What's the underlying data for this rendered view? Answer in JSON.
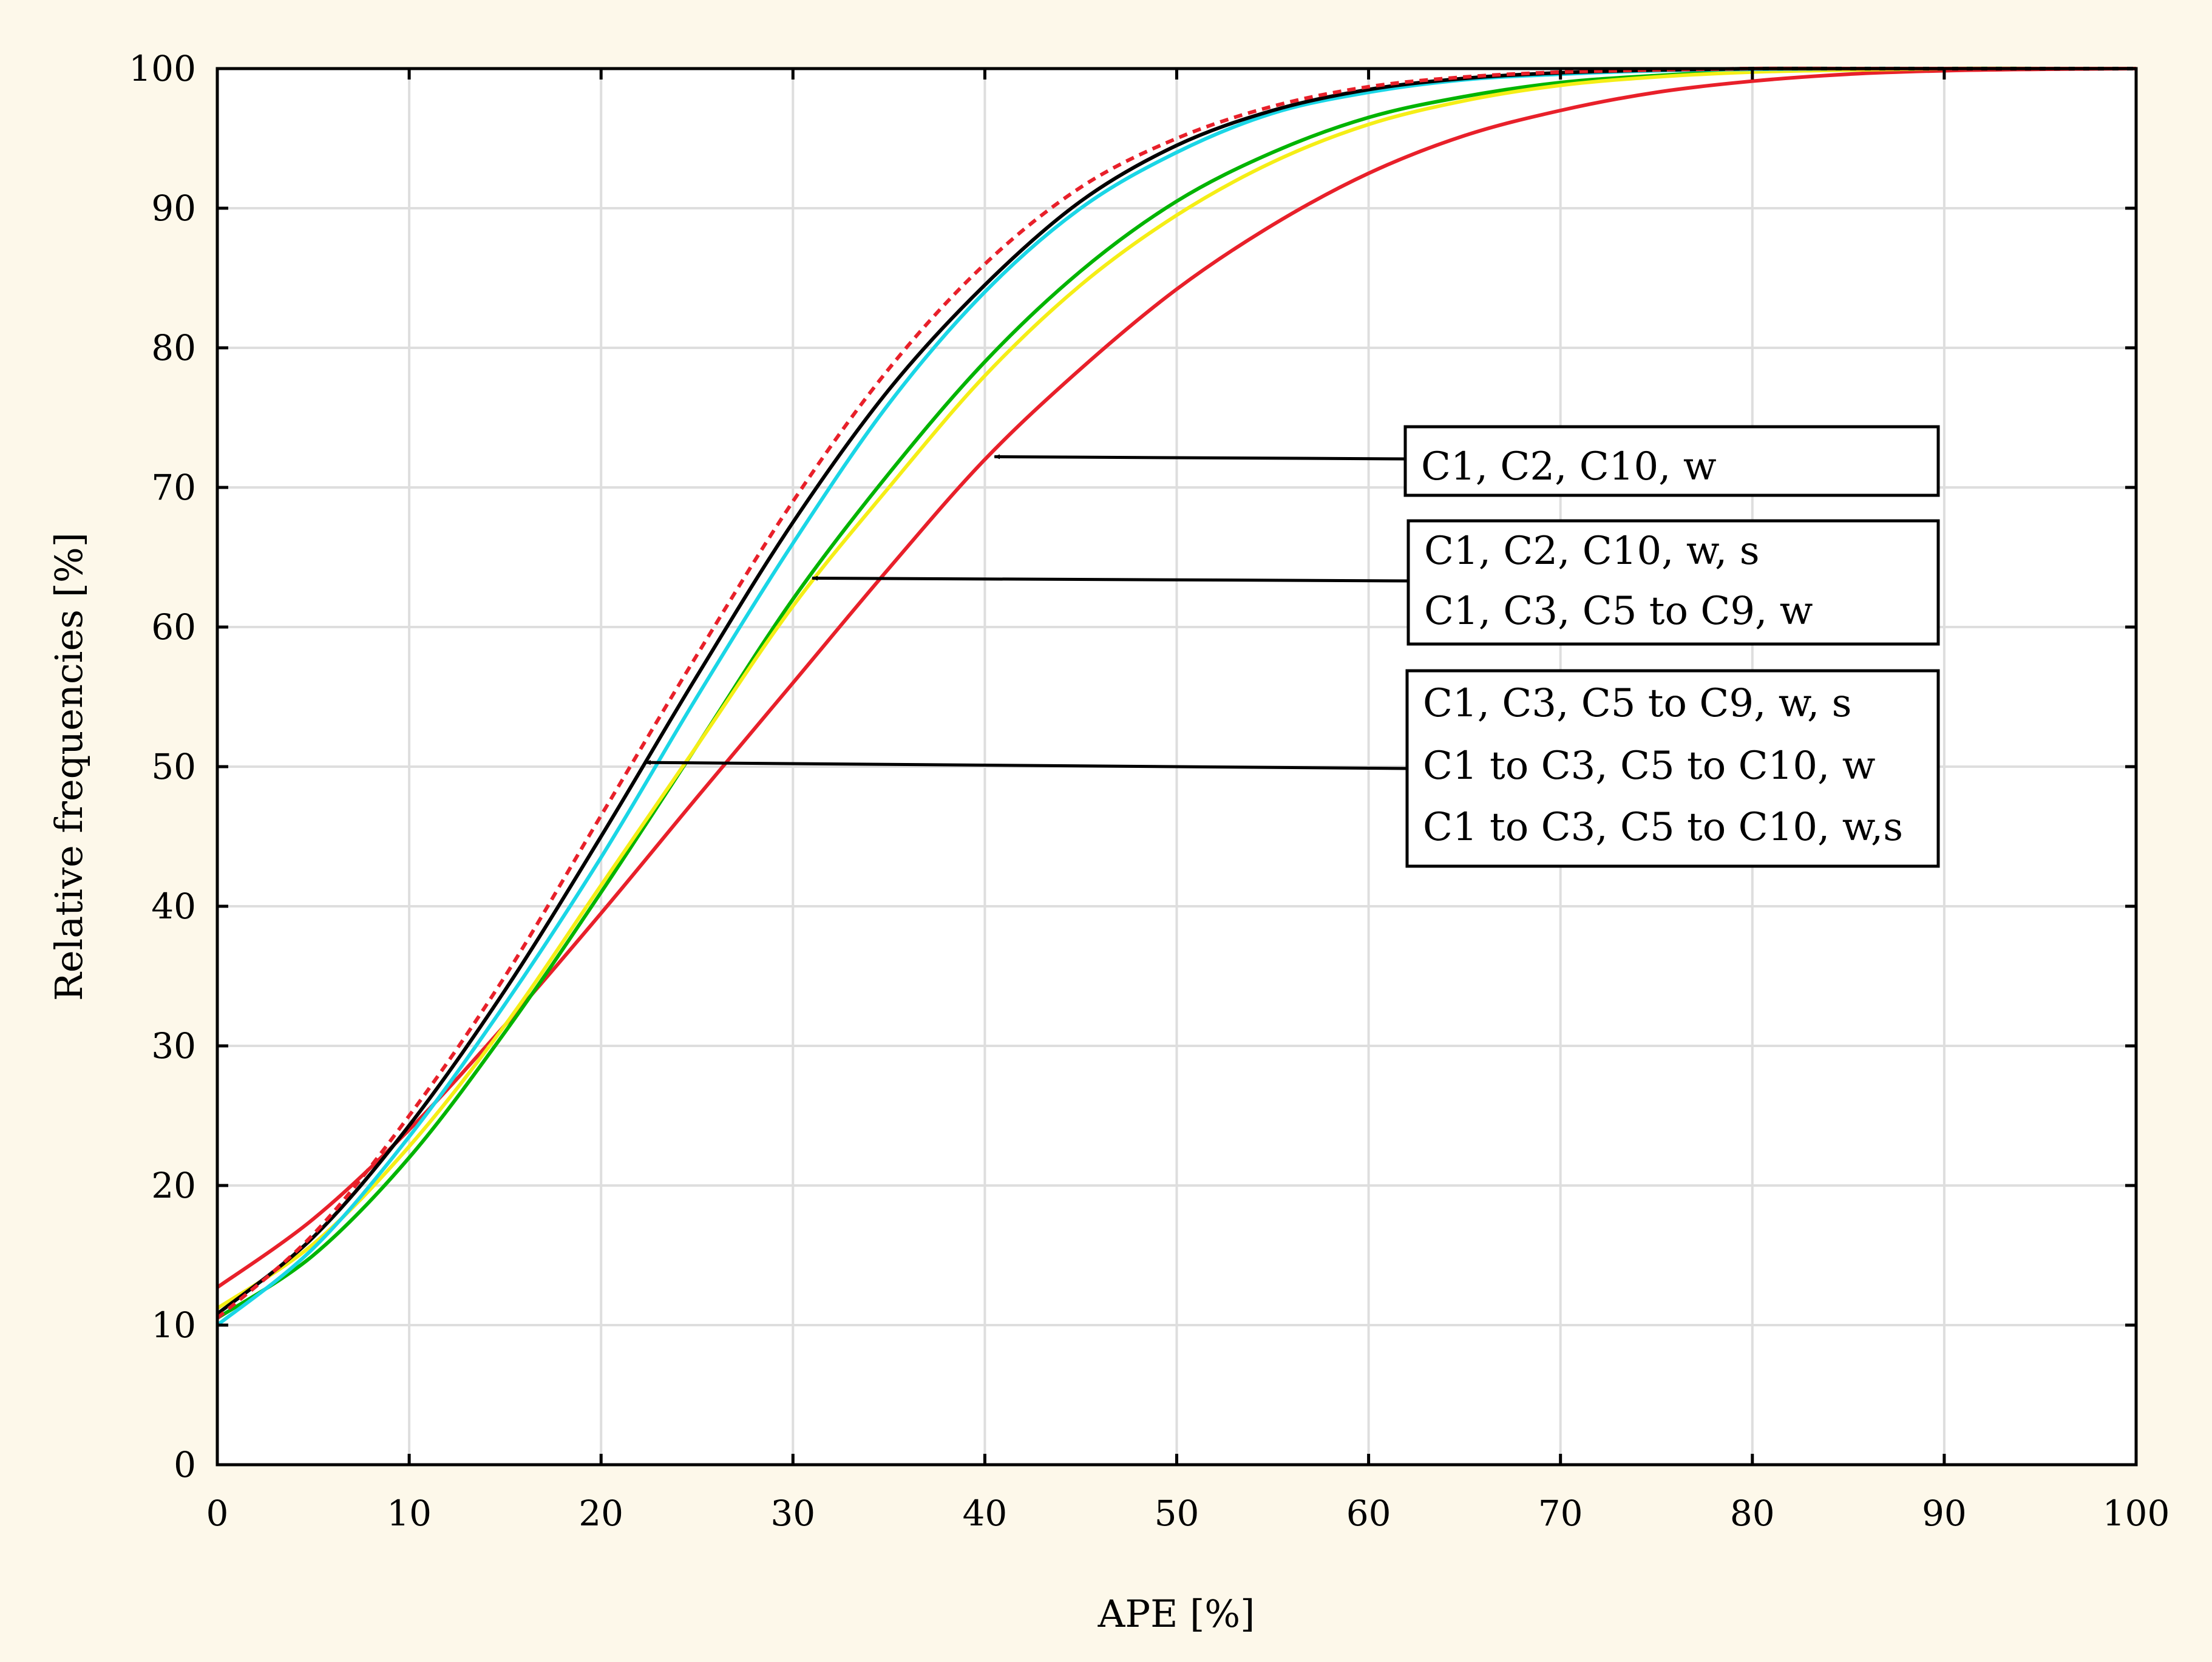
{
  "chart_data": {
    "type": "line",
    "title": "",
    "xlabel": "APE [%]",
    "ylabel": "Relative frequencies [%]",
    "xlim": [
      0,
      100
    ],
    "ylim": [
      0,
      100
    ],
    "xticks": [
      0,
      10,
      20,
      30,
      40,
      50,
      60,
      70,
      80,
      90,
      100
    ],
    "yticks": [
      0,
      10,
      20,
      30,
      40,
      50,
      60,
      70,
      80,
      90,
      100
    ],
    "grid": true,
    "series": [
      {
        "color": "#e8202a",
        "dashed": false,
        "x": [
          0,
          5,
          10,
          15,
          20,
          25,
          30,
          35,
          40,
          45,
          50,
          55,
          60,
          65,
          70,
          75,
          80,
          85,
          90,
          95,
          100
        ],
        "y": [
          12.7,
          17.6,
          24.0,
          31.5,
          39.5,
          47.8,
          56.0,
          64.2,
          72.0,
          78.5,
          84.2,
          88.8,
          92.5,
          95.2,
          97.0,
          98.3,
          99.1,
          99.6,
          99.85,
          99.95,
          100
        ]
      },
      {
        "color": "#00b400",
        "dashed": false,
        "x": [
          0,
          5,
          10,
          15,
          20,
          25,
          30,
          35,
          40,
          45,
          50,
          55,
          60,
          65,
          70,
          75,
          80,
          85,
          90,
          95,
          100
        ],
        "y": [
          10.5,
          15.0,
          22.0,
          31.0,
          41.0,
          51.5,
          62.0,
          71.0,
          79.0,
          85.5,
          90.5,
          94.0,
          96.5,
          98.0,
          99.0,
          99.5,
          99.8,
          99.9,
          100,
          100,
          100
        ]
      },
      {
        "color": "#f5ee16",
        "dashed": false,
        "x": [
          0,
          5,
          10,
          15,
          20,
          25,
          30,
          35,
          40,
          45,
          50,
          55,
          60,
          65,
          70,
          75,
          80,
          85,
          90,
          95,
          100
        ],
        "y": [
          11.2,
          15.8,
          22.8,
          31.5,
          41.5,
          51.5,
          61.5,
          70.0,
          78.0,
          84.5,
          89.5,
          93.3,
          96.0,
          97.7,
          98.8,
          99.4,
          99.75,
          99.9,
          100,
          100,
          100
        ]
      },
      {
        "color": "#1ad6e6",
        "dashed": false,
        "x": [
          0,
          5,
          10,
          15,
          20,
          25,
          30,
          35,
          40,
          45,
          50,
          55,
          60,
          65,
          70,
          75,
          80,
          85,
          90,
          95,
          100
        ],
        "y": [
          10.0,
          15.5,
          23.5,
          33.0,
          43.5,
          55.0,
          66.0,
          76.0,
          84.0,
          90.0,
          94.0,
          96.8,
          98.3,
          99.2,
          99.6,
          99.85,
          99.95,
          100,
          100,
          100,
          100
        ]
      },
      {
        "color": "#000000",
        "dashed": false,
        "x": [
          0,
          5,
          10,
          15,
          20,
          25,
          30,
          35,
          40,
          45,
          50,
          55,
          60,
          65,
          70,
          75,
          80,
          85,
          90,
          95,
          100
        ],
        "y": [
          10.8,
          16.3,
          24.3,
          34.0,
          45.0,
          56.5,
          67.5,
          77.0,
          84.5,
          90.5,
          94.5,
          97.0,
          98.5,
          99.3,
          99.7,
          99.9,
          100,
          100,
          100,
          100,
          100
        ]
      },
      {
        "color": "#e8202a",
        "dashed": true,
        "x": [
          0,
          5,
          10,
          15,
          20,
          25,
          30,
          35,
          40,
          45,
          50,
          55,
          60,
          65,
          70,
          75,
          80,
          85,
          90,
          95,
          100
        ],
        "y": [
          10.5,
          16.5,
          25.0,
          35.0,
          46.5,
          58.0,
          69.0,
          78.5,
          86.0,
          91.5,
          95.0,
          97.3,
          98.7,
          99.4,
          99.75,
          99.9,
          100,
          100,
          100,
          100,
          100
        ]
      }
    ],
    "annotations": [
      {
        "lines": [
          "C1, C2, C10, w"
        ],
        "arrow_to": [
          40.5,
          72.2
        ]
      },
      {
        "lines": [
          "C1, C2, C10, w, s",
          "C1, C3, C5 to C9, w"
        ],
        "arrow_to": [
          31.0,
          63.5
        ]
      },
      {
        "lines": [
          "C1, C3, C5 to C9, w, s",
          "C1 to C3, C5 to C10, w",
          "C1 to C3, C5 to C10, w,s"
        ],
        "arrow_to": [
          22.3,
          50.3
        ]
      }
    ]
  }
}
